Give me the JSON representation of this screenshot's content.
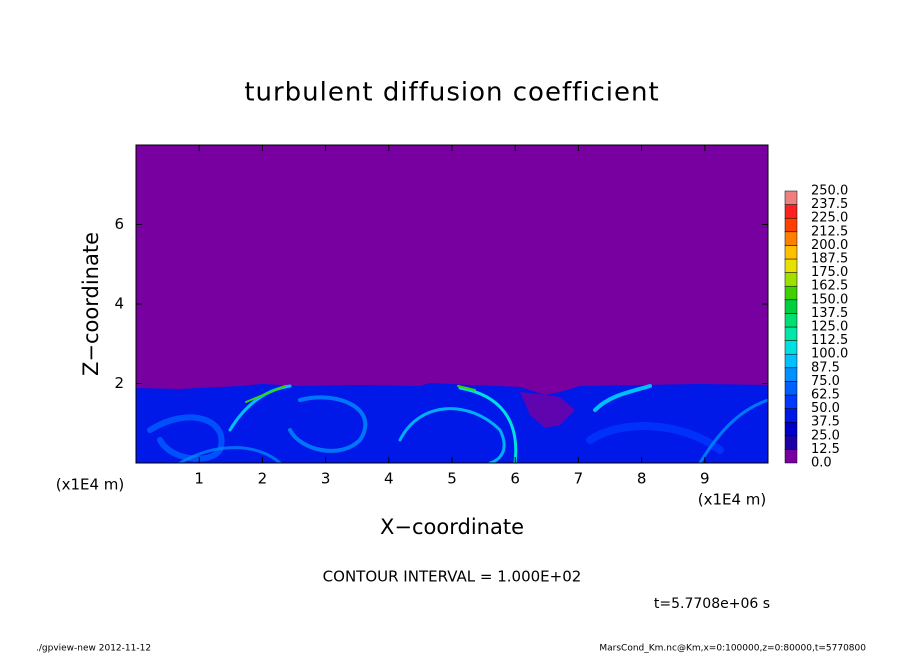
{
  "chart_data": {
    "type": "contour",
    "title": "turbulent diffusion coefficient",
    "xlabel": "X−coordinate",
    "ylabel": "Z−coordinate",
    "x_unit": "(x1E4 m)",
    "xlim": [
      0,
      10
    ],
    "ylim": [
      0,
      8
    ],
    "xticks": [
      1,
      2,
      3,
      4,
      5,
      6,
      7,
      8,
      9
    ],
    "yticks": [
      2,
      4,
      6
    ],
    "levels": [
      {
        "value": 0,
        "label": "0.0"
      },
      {
        "value": 12.5,
        "label": "12.5"
      },
      {
        "value": 25,
        "label": "25.0"
      },
      {
        "value": 37.5,
        "label": "37.5"
      },
      {
        "value": 50,
        "label": "50.0"
      },
      {
        "value": 62.5,
        "label": "62.5"
      },
      {
        "value": 75,
        "label": "75.0"
      },
      {
        "value": 87.5,
        "label": "87.5"
      },
      {
        "value": 100,
        "label": "100.0"
      },
      {
        "value": 112.5,
        "label": "112.5"
      },
      {
        "value": 125,
        "label": "125.0"
      },
      {
        "value": 137.5,
        "label": "137.5"
      },
      {
        "value": 150,
        "label": "150.0"
      },
      {
        "value": 162.5,
        "label": "162.5"
      },
      {
        "value": 175,
        "label": "175.0"
      },
      {
        "value": 187.5,
        "label": "187.5"
      },
      {
        "value": 200,
        "label": "200.0"
      },
      {
        "value": 212.5,
        "label": "212.5"
      },
      {
        "value": 225,
        "label": "225.0"
      },
      {
        "value": 237.5,
        "label": "237.5"
      },
      {
        "value": 250,
        "label": "250.0"
      }
    ],
    "level_colors": [
      "#7800a0",
      "#1c00a8",
      "#0000c8",
      "#0018e8",
      "#0038ff",
      "#0060ff",
      "#0090ff",
      "#00c0ff",
      "#00e0e0",
      "#00e8a8",
      "#00e070",
      "#00d040",
      "#40d000",
      "#a0e000",
      "#e8e000",
      "#ffc000",
      "#ff8000",
      "#ff4000",
      "#ff2020",
      "#f08080"
    ],
    "contour_interval": "CONTOUR INTERVAL = 1.000E+02",
    "time_label": "t=5.7708e+06 s",
    "footer_left": "./gpview-new  2012-11-12",
    "footer_right": "MarsCond_Km.nc@Km,x=0:100000,z=0:80000,t=5770800"
  }
}
